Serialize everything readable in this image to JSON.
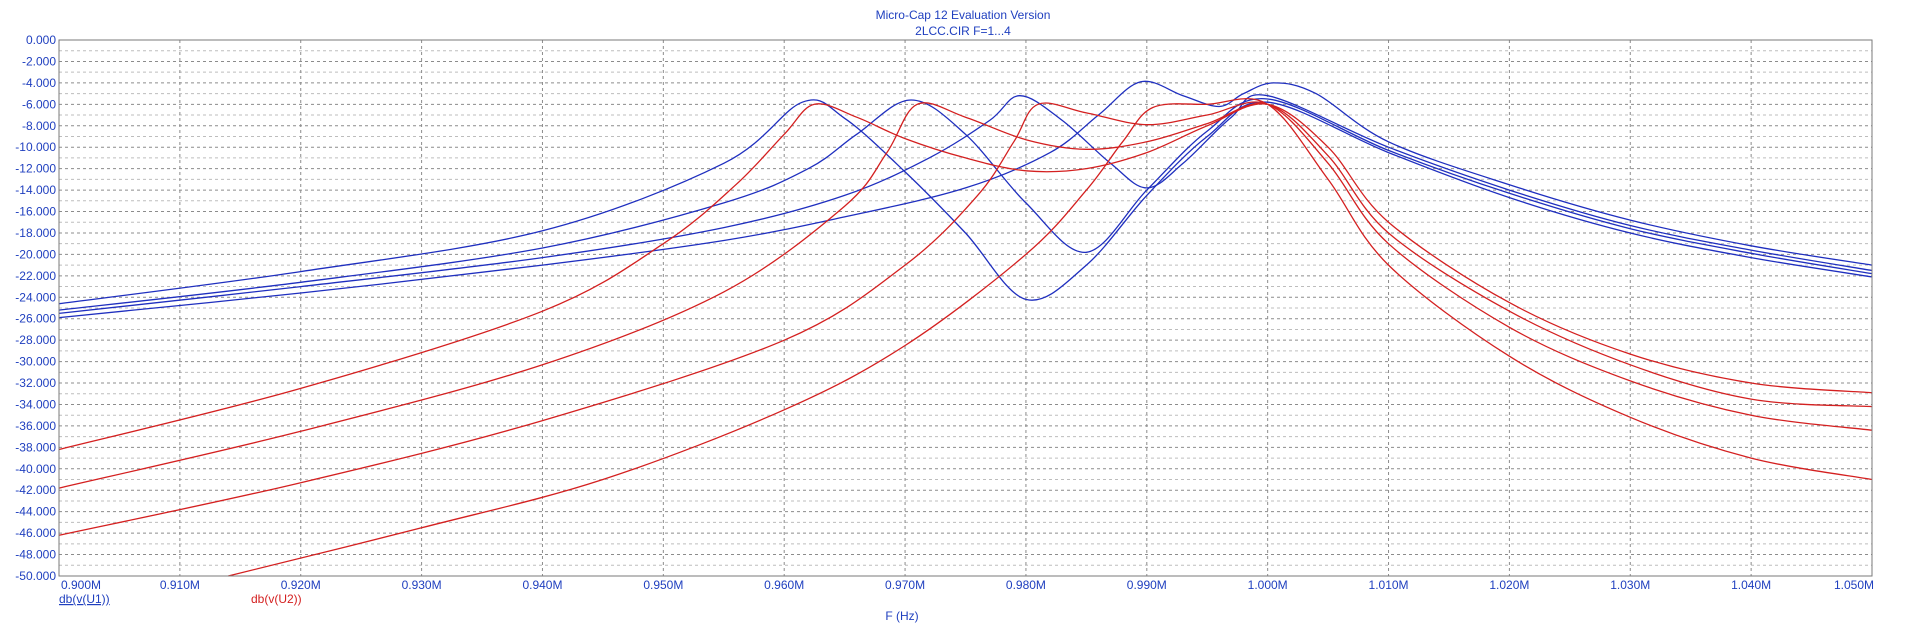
{
  "chart_data": {
    "type": "line",
    "title": "Micro-Cap 12 Evaluation Version",
    "subtitle": "2LCC.CIR F=1...4",
    "xlabel": "F (Hz)",
    "ylabel": "",
    "xlim": [
      900000,
      1050000
    ],
    "ylim": [
      -50,
      0
    ],
    "grid": true,
    "x_tick_values": [
      900000,
      910000,
      920000,
      930000,
      940000,
      950000,
      960000,
      970000,
      980000,
      990000,
      1000000,
      1010000,
      1020000,
      1030000,
      1040000,
      1050000
    ],
    "x_tick_labels": [
      "0.900M",
      "0.910M",
      "0.920M",
      "0.930M",
      "0.940M",
      "0.950M",
      "0.960M",
      "0.970M",
      "0.980M",
      "0.990M",
      "1.000M",
      "1.010M",
      "1.020M",
      "1.030M",
      "1.040M",
      "1.050M"
    ],
    "y_tick_values": [
      0,
      -2,
      -4,
      -6,
      -8,
      -10,
      -12,
      -14,
      -16,
      -18,
      -20,
      -22,
      -24,
      -26,
      -28,
      -30,
      -32,
      -34,
      -36,
      -38,
      -40,
      -42,
      -44,
      -46,
      -48,
      -50
    ],
    "y_tick_labels": [
      "0.000",
      "-2.000",
      "-4.000",
      "-6.000",
      "-8.000",
      "-10.000",
      "-12.000",
      "-14.000",
      "-16.000",
      "-18.000",
      "-20.000",
      "-22.000",
      "-24.000",
      "-26.000",
      "-28.000",
      "-30.000",
      "-32.000",
      "-34.000",
      "-36.000",
      "-38.000",
      "-40.000",
      "-42.000",
      "-44.000",
      "-46.000",
      "-48.000",
      "-50.000"
    ],
    "legend": [
      {
        "label": "db(v(U1))",
        "color": "#1f2fbf"
      },
      {
        "label": "db(v(U2))",
        "color": "#d42020"
      }
    ],
    "series": [
      {
        "group": "db(v(U1))",
        "color": "#1f2fbf",
        "points": [
          [
            900000,
            -24.6
          ],
          [
            920000,
            -21.6
          ],
          [
            940000,
            -17.8
          ],
          [
            955000,
            -11.5
          ],
          [
            961500,
            -5.8
          ],
          [
            965000,
            -7.3
          ],
          [
            970000,
            -12.3
          ],
          [
            975000,
            -18
          ],
          [
            980000,
            -24.2
          ],
          [
            985000,
            -21
          ],
          [
            990000,
            -14.5
          ],
          [
            995000,
            -9
          ],
          [
            1000000,
            -5.8
          ],
          [
            1010000,
            -10.5
          ],
          [
            1020000,
            -14.7
          ],
          [
            1030000,
            -18
          ],
          [
            1040000,
            -20.3
          ],
          [
            1050000,
            -22.1
          ]
        ]
      },
      {
        "group": "db(v(U1))",
        "color": "#1f2fbf",
        "points": [
          [
            900000,
            -25.2
          ],
          [
            920000,
            -22.6
          ],
          [
            940000,
            -19.4
          ],
          [
            955000,
            -15.2
          ],
          [
            962000,
            -12
          ],
          [
            966000,
            -8.8
          ],
          [
            970500,
            -5.6
          ],
          [
            975000,
            -8.8
          ],
          [
            980000,
            -15.2
          ],
          [
            985000,
            -19.8
          ],
          [
            990000,
            -14
          ],
          [
            995000,
            -8.5
          ],
          [
            1000000,
            -5.5
          ],
          [
            1010000,
            -10.3
          ],
          [
            1020000,
            -14.3
          ],
          [
            1030000,
            -17.6
          ],
          [
            1040000,
            -19.9
          ],
          [
            1050000,
            -21.8
          ]
        ]
      },
      {
        "group": "db(v(U1))",
        "color": "#1f2fbf",
        "points": [
          [
            900000,
            -25.5
          ],
          [
            920000,
            -23
          ],
          [
            940000,
            -20.3
          ],
          [
            955000,
            -17.5
          ],
          [
            965000,
            -14.5
          ],
          [
            972000,
            -11
          ],
          [
            977000,
            -7.5
          ],
          [
            979500,
            -5.2
          ],
          [
            983000,
            -7.5
          ],
          [
            987000,
            -11.5
          ],
          [
            990000,
            -13.8
          ],
          [
            993000,
            -11.5
          ],
          [
            997000,
            -7.2
          ],
          [
            1000000,
            -5.2
          ],
          [
            1010000,
            -10
          ],
          [
            1020000,
            -14
          ],
          [
            1030000,
            -17.3
          ],
          [
            1040000,
            -19.6
          ],
          [
            1050000,
            -21.5
          ]
        ]
      },
      {
        "group": "db(v(U1))",
        "color": "#1f2fbf",
        "points": [
          [
            900000,
            -25.9
          ],
          [
            920000,
            -23.6
          ],
          [
            940000,
            -21
          ],
          [
            955000,
            -18.7
          ],
          [
            965000,
            -16.5
          ],
          [
            975000,
            -13.8
          ],
          [
            982000,
            -10.5
          ],
          [
            986000,
            -7
          ],
          [
            989500,
            -3.9
          ],
          [
            993000,
            -5.2
          ],
          [
            996000,
            -6.2
          ],
          [
            998000,
            -5
          ],
          [
            1000500,
            -4
          ],
          [
            1004000,
            -5
          ],
          [
            1010000,
            -9.5
          ],
          [
            1020000,
            -13.5
          ],
          [
            1030000,
            -16.8
          ],
          [
            1040000,
            -19.2
          ],
          [
            1050000,
            -21
          ]
        ]
      },
      {
        "group": "db(v(U2))",
        "color": "#d42020",
        "points": [
          [
            900000,
            -38.2
          ],
          [
            920000,
            -32.5
          ],
          [
            940000,
            -25.3
          ],
          [
            950000,
            -19
          ],
          [
            956000,
            -13.5
          ],
          [
            960000,
            -8.8
          ],
          [
            962500,
            -6
          ],
          [
            966000,
            -7.2
          ],
          [
            970000,
            -9.2
          ],
          [
            975000,
            -11
          ],
          [
            980000,
            -12.2
          ],
          [
            985000,
            -12
          ],
          [
            990000,
            -10.5
          ],
          [
            995000,
            -8
          ],
          [
            1000000,
            -6
          ],
          [
            1005000,
            -10
          ],
          [
            1010000,
            -17
          ],
          [
            1020000,
            -24.5
          ],
          [
            1030000,
            -29.3
          ],
          [
            1040000,
            -32
          ],
          [
            1050000,
            -32.9
          ]
        ]
      },
      {
        "group": "db(v(U2))",
        "color": "#d42020",
        "points": [
          [
            900000,
            -41.8
          ],
          [
            920000,
            -36.5
          ],
          [
            940000,
            -30.3
          ],
          [
            955000,
            -23.5
          ],
          [
            965000,
            -15.5
          ],
          [
            968500,
            -10.5
          ],
          [
            971000,
            -6
          ],
          [
            975000,
            -7.2
          ],
          [
            980000,
            -9.3
          ],
          [
            985000,
            -10.2
          ],
          [
            990000,
            -9.5
          ],
          [
            995000,
            -7.8
          ],
          [
            1000000,
            -6
          ],
          [
            1005000,
            -10.8
          ],
          [
            1010000,
            -18
          ],
          [
            1020000,
            -25.3
          ],
          [
            1030000,
            -30.3
          ],
          [
            1040000,
            -33.5
          ],
          [
            1050000,
            -34.2
          ]
        ]
      },
      {
        "group": "db(v(U2))",
        "color": "#d42020",
        "points": [
          [
            900000,
            -46.2
          ],
          [
            920000,
            -41.3
          ],
          [
            940000,
            -35.5
          ],
          [
            960000,
            -28
          ],
          [
            970000,
            -21
          ],
          [
            976000,
            -14.5
          ],
          [
            979000,
            -9.5
          ],
          [
            981000,
            -6
          ],
          [
            985000,
            -6.8
          ],
          [
            990000,
            -7.9
          ],
          [
            995000,
            -7
          ],
          [
            1000000,
            -6
          ],
          [
            1005000,
            -11.5
          ],
          [
            1010000,
            -19
          ],
          [
            1020000,
            -26.8
          ],
          [
            1030000,
            -31.8
          ],
          [
            1040000,
            -35
          ],
          [
            1050000,
            -36.4
          ]
        ]
      },
      {
        "group": "db(v(U2))",
        "color": "#d42020",
        "points": [
          [
            914000,
            -50
          ],
          [
            930000,
            -45.5
          ],
          [
            945000,
            -41
          ],
          [
            960000,
            -34.5
          ],
          [
            970000,
            -28.5
          ],
          [
            980000,
            -20
          ],
          [
            985000,
            -14
          ],
          [
            988000,
            -9.5
          ],
          [
            990500,
            -6.3
          ],
          [
            995000,
            -6
          ],
          [
            1000000,
            -6
          ],
          [
            1005000,
            -13
          ],
          [
            1010000,
            -21
          ],
          [
            1020000,
            -29.5
          ],
          [
            1030000,
            -35.2
          ],
          [
            1040000,
            -39
          ],
          [
            1050000,
            -41
          ]
        ]
      }
    ]
  }
}
